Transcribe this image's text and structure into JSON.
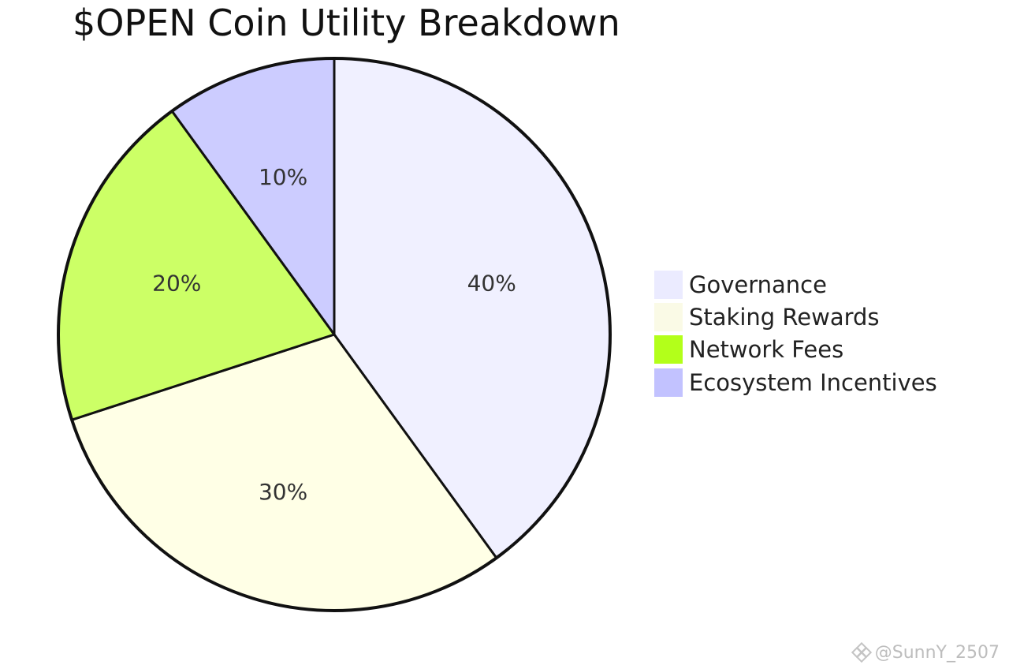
{
  "chart_data": {
    "type": "pie",
    "title": "$OPEN Coin Utility Breakdown",
    "slices": [
      {
        "label": "Governance",
        "value": 40,
        "display": "40%",
        "color": "#f0f0ff"
      },
      {
        "label": "Staking Rewards",
        "value": 30,
        "display": "30%",
        "color": "#ffffe6"
      },
      {
        "label": "Network Fees",
        "value": 20,
        "display": "20%",
        "color": "#ccff66"
      },
      {
        "label": "Ecosystem Incentives",
        "value": 10,
        "display": "10%",
        "color": "#ccccff"
      }
    ],
    "legend_swatch_colors": [
      "#ebebff",
      "#fafae6",
      "#b3ff1a",
      "#c2c2ff"
    ],
    "legend_position": "right",
    "start": "top",
    "direction": "clockwise"
  },
  "watermark": "@SunnY_2507"
}
